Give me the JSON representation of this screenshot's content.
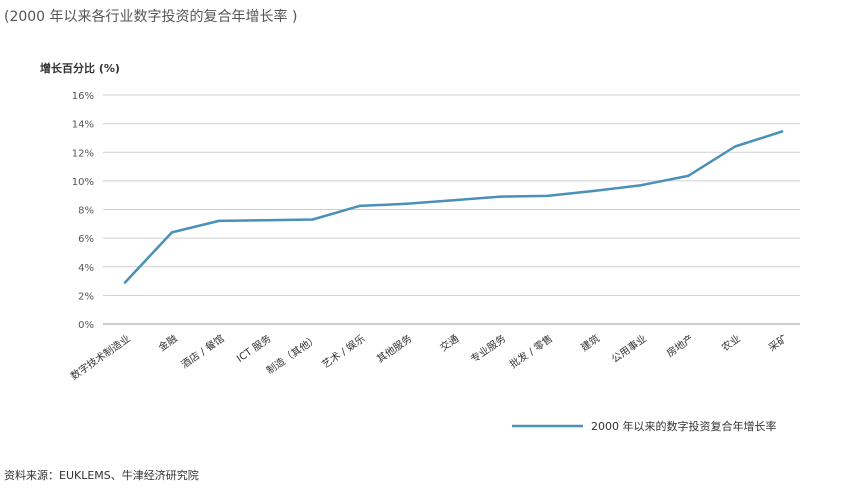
{
  "subtitle": "(2000 年以来各行业数字投资的复合年增长率 )",
  "source": "资料来源：EUKLEMS、牛津经济研究院",
  "chart_data": {
    "type": "line",
    "ylabel": "增长百分比 (%)",
    "ylim": [
      0,
      16
    ],
    "yticks": [
      0,
      2,
      4,
      6,
      8,
      10,
      12,
      14,
      16
    ],
    "ytick_labels": [
      "0%",
      "2%",
      "4%",
      "6%",
      "8%",
      "10%",
      "12%",
      "14%",
      "16%"
    ],
    "categories": [
      "数字技术制造业",
      "金融",
      "酒店 / 餐馆",
      "ICT 服务",
      "制造（其他）",
      "艺术 / 娱乐",
      "其他服务",
      "交通",
      "专业服务",
      "批发 / 零售",
      "建筑",
      "公用事业",
      "房地产",
      "农业",
      "采矿"
    ],
    "series": [
      {
        "name": "2000 年以来的数字投资复合年增长率",
        "color": "#4a90b8",
        "values": [
          2.9,
          6.4,
          7.2,
          7.25,
          7.3,
          8.25,
          8.4,
          8.65,
          8.9,
          8.95,
          9.3,
          9.7,
          10.35,
          12.4,
          13.45
        ]
      }
    ],
    "grid": true,
    "legend": "bottom-right"
  }
}
